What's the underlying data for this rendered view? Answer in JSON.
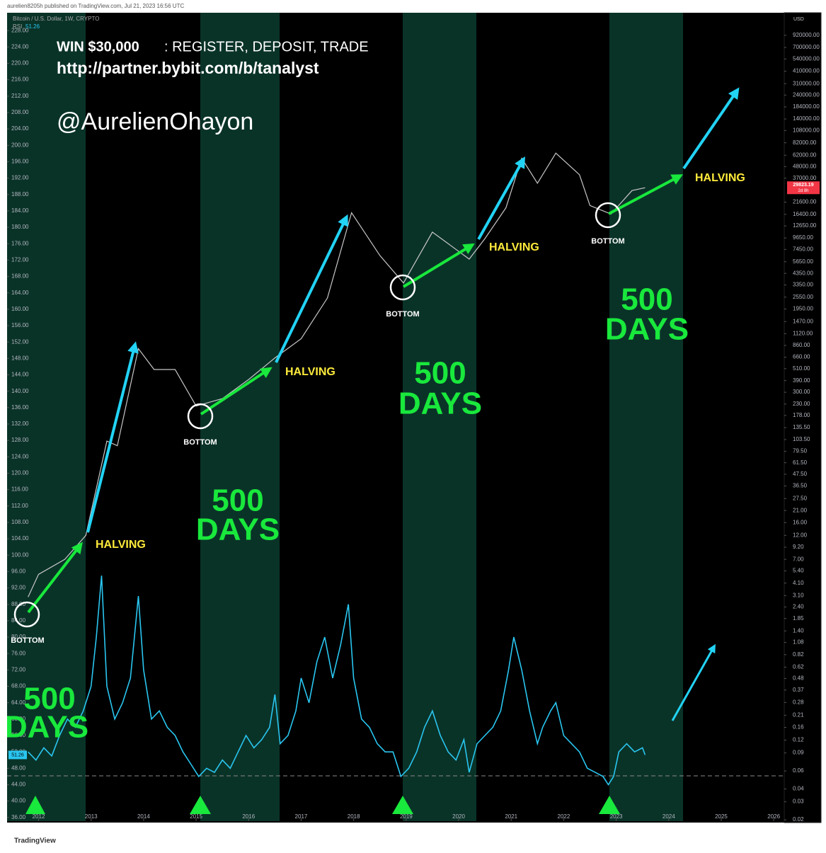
{
  "header": {
    "text": "aurelien8205h published on TradingView.com, Jul 21, 2023 16:56 UTC"
  },
  "legend": {
    "symbol": "Bitcoin / U.S. Dollar, 1W, CRYPTO",
    "indicator": "RSI"
  },
  "annotations": {
    "promo_amount": "WIN $30,000",
    "promo_text": ": REGISTER, DEPOSIT, TRADE",
    "url": "http://partner.bybit.com/b/tanalyst",
    "handle": "@AurelienOhayon",
    "halving": [
      "HALVING",
      "HALVING",
      "HALVING",
      "HALVING"
    ],
    "bottom": [
      "BOTTOM",
      "BOTTOM",
      "BOTTOM",
      "BOTTOM"
    ],
    "cycle_number": [
      "500",
      "500",
      "500",
      "500"
    ],
    "cycle_unit": [
      "DAYS",
      "DAYS",
      "DAYS",
      "DAYS"
    ]
  },
  "currency": "USD",
  "countdown": "2d 8h",
  "footer": "TradingView",
  "chart_data": {
    "type": "line",
    "xlim": [
      2011.4,
      2026.2
    ],
    "xticks": [
      2012,
      2013,
      2014,
      2015,
      2016,
      2017,
      2018,
      2019,
      2020,
      2021,
      2022,
      2023,
      2024,
      2025,
      2026
    ],
    "ylim": [
      35.1,
      232
    ],
    "yticks": [
      {
        "value": 228,
        "label": "228.00"
      },
      {
        "value": 224,
        "label": "224.00"
      },
      {
        "value": 220,
        "label": "220.00"
      },
      {
        "value": 216,
        "label": "216.00"
      },
      {
        "value": 212,
        "label": "212.00"
      },
      {
        "value": 208,
        "label": "208.00"
      },
      {
        "value": 204,
        "label": "204.00"
      },
      {
        "value": 200,
        "label": "200.00"
      },
      {
        "value": 196,
        "label": "196.00"
      },
      {
        "value": 192,
        "label": "192.00"
      },
      {
        "value": 188,
        "label": "188.00"
      },
      {
        "value": 184,
        "label": "184.00"
      },
      {
        "value": 180,
        "label": "180.00"
      },
      {
        "value": 176,
        "label": "176.00"
      },
      {
        "value": 172,
        "label": "172.00"
      },
      {
        "value": 168,
        "label": "168.00"
      },
      {
        "value": 164,
        "label": "164.00"
      },
      {
        "value": 160,
        "label": "160.00"
      },
      {
        "value": 156,
        "label": "156.00"
      },
      {
        "value": 152,
        "label": "152.00"
      },
      {
        "value": 148,
        "label": "148.00"
      },
      {
        "value": 144,
        "label": "144.00"
      },
      {
        "value": 140,
        "label": "140.00"
      },
      {
        "value": 136,
        "label": "136.00"
      },
      {
        "value": 132,
        "label": "132.00"
      },
      {
        "value": 128,
        "label": "128.00"
      },
      {
        "value": 124,
        "label": "124.00"
      },
      {
        "value": 120,
        "label": "120.00"
      },
      {
        "value": 116,
        "label": "116.00"
      },
      {
        "value": 112,
        "label": "112.00"
      },
      {
        "value": 108,
        "label": "108.00"
      },
      {
        "value": 104,
        "label": "104.00"
      },
      {
        "value": 100,
        "label": "100.00"
      },
      {
        "value": 96,
        "label": "96.00"
      },
      {
        "value": 92,
        "label": "92.00"
      },
      {
        "value": 88,
        "label": "88.00"
      },
      {
        "value": 84,
        "label": "84.00"
      },
      {
        "value": 80,
        "label": "80.00"
      },
      {
        "value": 76,
        "label": "76.00"
      },
      {
        "value": 72,
        "label": "72.00"
      },
      {
        "value": 68,
        "label": "68.00"
      },
      {
        "value": 64,
        "label": "64.00"
      },
      {
        "value": 60,
        "label": "60.00"
      },
      {
        "value": 56,
        "label": "56.00"
      },
      {
        "value": 52,
        "label": "52.00"
      },
      {
        "value": 48,
        "label": "48.00"
      },
      {
        "value": 44,
        "label": "44.00"
      },
      {
        "value": 40,
        "label": "40.00"
      },
      {
        "value": 36,
        "label": "36.00"
      }
    ],
    "y2log": true,
    "y2lim": [
      0.0194,
      1480000
    ],
    "y2ticks": [
      {
        "value": 920000,
        "label": "920000.00"
      },
      {
        "value": 700000,
        "label": "700000.00"
      },
      {
        "value": 540000,
        "label": "540000.00"
      },
      {
        "value": 410000,
        "label": "410000.00"
      },
      {
        "value": 310000,
        "label": "310000.00"
      },
      {
        "value": 240000,
        "label": "240000.00"
      },
      {
        "value": 184000,
        "label": "184000.00"
      },
      {
        "value": 140000,
        "label": "140000.00"
      },
      {
        "value": 108000,
        "label": "108000.00"
      },
      {
        "value": 82000,
        "label": "82000.00"
      },
      {
        "value": 62000,
        "label": "62000.00"
      },
      {
        "value": 48000,
        "label": "48000.00"
      },
      {
        "value": 37000,
        "label": "37000.00"
      },
      {
        "value": 21600,
        "label": "21600.00"
      },
      {
        "value": 16400,
        "label": "16400.00"
      },
      {
        "value": 12650,
        "label": "12650.00"
      },
      {
        "value": 9650,
        "label": "9650.00"
      },
      {
        "value": 7450,
        "label": "7450.00"
      },
      {
        "value": 5650,
        "label": "5650.00"
      },
      {
        "value": 4350,
        "label": "4350.00"
      },
      {
        "value": 3350,
        "label": "3350.00"
      },
      {
        "value": 2550,
        "label": "2550.00"
      },
      {
        "value": 1950,
        "label": "1950.00"
      },
      {
        "value": 1470,
        "label": "1470.00"
      },
      {
        "value": 1120,
        "label": "1120.00"
      },
      {
        "value": 860,
        "label": "860.00"
      },
      {
        "value": 660,
        "label": "660.00"
      },
      {
        "value": 510,
        "label": "510.00"
      },
      {
        "value": 390,
        "label": "390.00"
      },
      {
        "value": 300,
        "label": "300.00"
      },
      {
        "value": 230,
        "label": "230.00"
      },
      {
        "value": 178,
        "label": "178.00"
      },
      {
        "value": 135.5,
        "label": "135.50"
      },
      {
        "value": 103.5,
        "label": "103.50"
      },
      {
        "value": 79.5,
        "label": "79.50"
      },
      {
        "value": 61.5,
        "label": "61.50"
      },
      {
        "value": 47.5,
        "label": "47.50"
      },
      {
        "value": 36.5,
        "label": "36.50"
      },
      {
        "value": 27.5,
        "label": "27.50"
      },
      {
        "value": 21,
        "label": "21.00"
      },
      {
        "value": 16,
        "label": "16.00"
      },
      {
        "value": 12,
        "label": "12.00"
      },
      {
        "value": 9.2,
        "label": "9.20"
      },
      {
        "value": 7,
        "label": "7.00"
      },
      {
        "value": 5.4,
        "label": "5.40"
      },
      {
        "value": 4.1,
        "label": "4.10"
      },
      {
        "value": 3.1,
        "label": "3.10"
      },
      {
        "value": 2.4,
        "label": "2.40"
      },
      {
        "value": 1.85,
        "label": "1.85"
      },
      {
        "value": 1.4,
        "label": "1.40"
      },
      {
        "value": 1.08,
        "label": "1.08"
      },
      {
        "value": 0.82,
        "label": "0.82"
      },
      {
        "value": 0.62,
        "label": "0.62"
      },
      {
        "value": 0.48,
        "label": "0.48"
      },
      {
        "value": 0.37,
        "label": "0.37"
      },
      {
        "value": 0.28,
        "label": "0.28"
      },
      {
        "value": 0.21,
        "label": "0.21"
      },
      {
        "value": 0.16,
        "label": "0.16"
      },
      {
        "value": 0.12,
        "label": "0.12"
      },
      {
        "value": 0.09,
        "label": "0.09"
      },
      {
        "value": 0.06,
        "label": "0.06"
      },
      {
        "value": 0.04,
        "label": "0.04"
      },
      {
        "value": 0.03,
        "label": "0.03"
      },
      {
        "value": 0.02,
        "label": "0.02"
      }
    ],
    "series": [
      {
        "axis": "y2",
        "color": "#c8c8c8",
        "x": [
          2011.8,
          2012.0,
          2012.5,
          2012.9,
          2013.3,
          2013.5,
          2013.9,
          2014.2,
          2014.6,
          2015.0,
          2015.5,
          2016.0,
          2016.5,
          2017.0,
          2017.5,
          2017.96,
          2018.5,
          2018.95,
          2019.5,
          2020.2,
          2020.5,
          2020.9,
          2021.2,
          2021.5,
          2021.85,
          2022.3,
          2022.5,
          2022.9,
          2023.3,
          2023.55
        ],
        "values": [
          3,
          5,
          7,
          12,
          100,
          90,
          800,
          500,
          500,
          220,
          260,
          400,
          650,
          1000,
          2500,
          17000,
          6500,
          3500,
          11000,
          6000,
          9500,
          19000,
          58000,
          33000,
          65000,
          40000,
          20000,
          16500,
          28000,
          29823.19
        ]
      },
      {
        "name": "RSI",
        "color": "#29c6f0",
        "x": [
          2011.8,
          2011.95,
          2012.1,
          2012.25,
          2012.4,
          2012.55,
          2012.7,
          2012.85,
          2013.0,
          2013.1,
          2013.2,
          2013.3,
          2013.45,
          2013.6,
          2013.75,
          2013.9,
          2014.0,
          2014.15,
          2014.3,
          2014.45,
          2014.6,
          2014.75,
          2014.9,
          2015.05,
          2015.2,
          2015.35,
          2015.5,
          2015.65,
          2015.8,
          2015.95,
          2016.1,
          2016.25,
          2016.4,
          2016.5,
          2016.6,
          2016.75,
          2016.9,
          2017.0,
          2017.15,
          2017.3,
          2017.45,
          2017.6,
          2017.75,
          2017.9,
          2018.0,
          2018.15,
          2018.3,
          2018.45,
          2018.6,
          2018.75,
          2018.9,
          2019.05,
          2019.2,
          2019.35,
          2019.5,
          2019.65,
          2019.8,
          2019.95,
          2020.1,
          2020.2,
          2020.35,
          2020.5,
          2020.65,
          2020.8,
          2020.95,
          2021.05,
          2021.2,
          2021.35,
          2021.5,
          2021.6,
          2021.75,
          2021.85,
          2022.0,
          2022.15,
          2022.3,
          2022.45,
          2022.6,
          2022.75,
          2022.85,
          2022.95,
          2023.05,
          2023.2,
          2023.35,
          2023.5,
          2023.55
        ],
        "values": [
          52,
          50,
          53,
          51,
          56,
          60,
          58,
          62,
          68,
          80,
          95,
          68,
          60,
          64,
          70,
          90,
          72,
          60,
          62,
          58,
          56,
          52,
          49,
          46,
          48,
          47,
          50,
          48,
          52,
          56,
          53,
          55,
          58,
          66,
          54,
          56,
          62,
          70,
          64,
          74,
          80,
          70,
          78,
          88,
          70,
          60,
          58,
          54,
          52,
          52,
          46,
          48,
          52,
          58,
          62,
          56,
          52,
          50,
          55,
          47,
          54,
          56,
          58,
          62,
          72,
          80,
          72,
          62,
          54,
          58,
          62,
          64,
          56,
          54,
          52,
          48,
          47,
          46,
          44,
          46,
          52,
          54,
          52,
          53,
          51.26
        ]
      }
    ]
  }
}
